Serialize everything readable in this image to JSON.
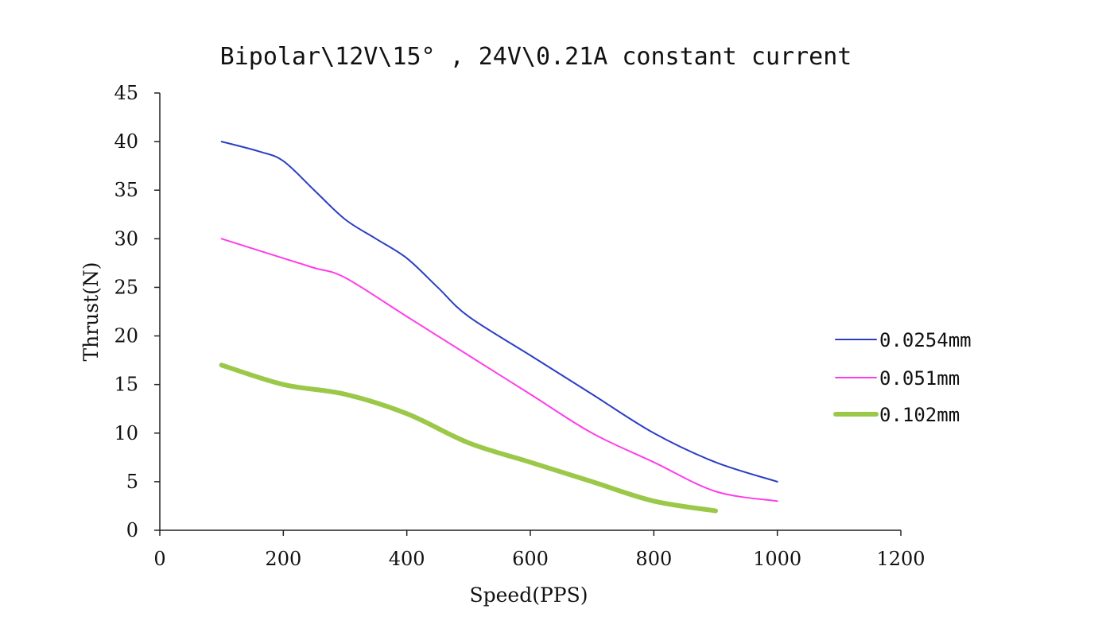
{
  "chart_data": {
    "type": "line",
    "title": "Bipolar\\12V\\15° , 24V\\0.21A constant current",
    "xlabel": "Speed(PPS)",
    "ylabel": "Thrust(N)",
    "xlim": [
      0,
      1200
    ],
    "ylim": [
      0,
      45
    ],
    "x_ticks": [
      "0",
      "200",
      "400",
      "600",
      "800",
      "1000",
      "1200"
    ],
    "y_ticks": [
      "0",
      "5",
      "10",
      "15",
      "20",
      "25",
      "30",
      "35",
      "40",
      "45"
    ],
    "grid": false,
    "legend_position": "right",
    "series": [
      {
        "name": "0.0254mm",
        "color": "#2a3fc4",
        "x": [
          100,
          160,
          200,
          250,
          300,
          350,
          400,
          450,
          500,
          600,
          700,
          800,
          900,
          1000
        ],
        "y": [
          40,
          39,
          38,
          35,
          32,
          30,
          28,
          25,
          22,
          18,
          14,
          10,
          7,
          5
        ]
      },
      {
        "name": "0.051mm",
        "color": "#ff3de8",
        "x": [
          100,
          200,
          250,
          300,
          400,
          500,
          600,
          700,
          800,
          900,
          1000
        ],
        "y": [
          30,
          28,
          27,
          26,
          22,
          18,
          14,
          10,
          7,
          4,
          3
        ]
      },
      {
        "name": "0.102mm",
        "color": "#9cc84a",
        "x": [
          100,
          200,
          300,
          400,
          500,
          600,
          700,
          800,
          900
        ],
        "y": [
          17,
          15,
          14,
          12,
          9,
          7,
          5,
          3,
          2
        ]
      }
    ]
  }
}
